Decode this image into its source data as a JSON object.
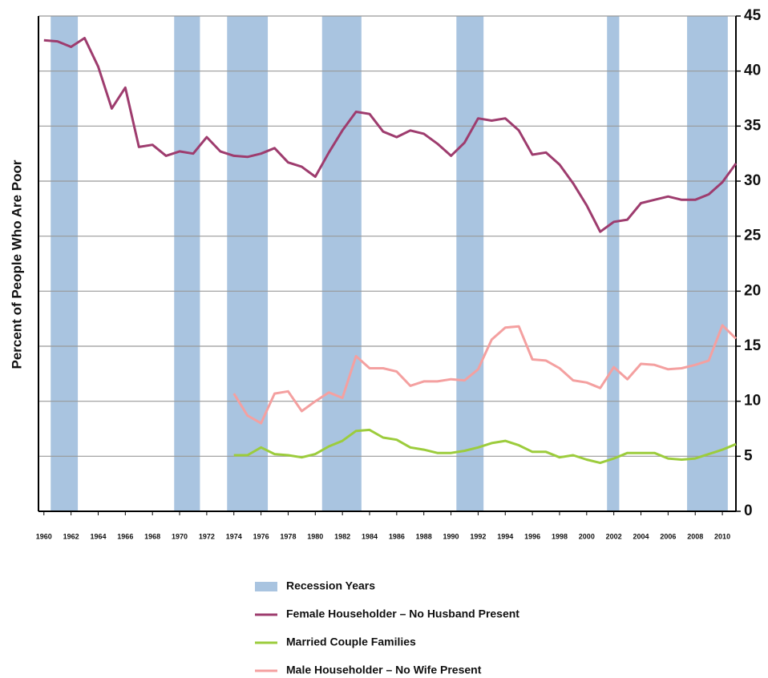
{
  "chart_data": {
    "type": "line",
    "y_label": "Percent of People Who Are Poor",
    "xlim": [
      1959.6,
      2011
    ],
    "ylim": [
      0,
      45
    ],
    "xticks": [
      1960,
      1962,
      1964,
      1966,
      1968,
      1970,
      1972,
      1974,
      1976,
      1978,
      1980,
      1982,
      1984,
      1986,
      1988,
      1990,
      1992,
      1994,
      1996,
      1998,
      2000,
      2002,
      2004,
      2006,
      2008,
      2010
    ],
    "yticks": [
      0,
      5,
      10,
      15,
      20,
      25,
      30,
      35,
      40,
      45
    ],
    "grid": true,
    "recessions": {
      "name": "Recession Years",
      "color": "#a9c4e0",
      "spans": [
        [
          1960.5,
          1962.5
        ],
        [
          1969.6,
          1971.5
        ],
        [
          1973.5,
          1976.5
        ],
        [
          1980.5,
          1983.4
        ],
        [
          1990.4,
          1992.4
        ],
        [
          2001.5,
          2002.4
        ],
        [
          2007.4,
          2010.4
        ]
      ]
    },
    "series": [
      {
        "name": "Female Householder – No Husband Present",
        "color": "#9e3c6e",
        "x": [
          1960,
          1961,
          1962,
          1963,
          1964,
          1965,
          1966,
          1967,
          1968,
          1969,
          1970,
          1971,
          1972,
          1973,
          1974,
          1975,
          1976,
          1977,
          1978,
          1979,
          1980,
          1981,
          1982,
          1983,
          1984,
          1985,
          1986,
          1987,
          1988,
          1989,
          1990,
          1991,
          1992,
          1993,
          1994,
          1995,
          1996,
          1997,
          1998,
          1999,
          2000,
          2001,
          2002,
          2003,
          2004,
          2005,
          2006,
          2007,
          2008,
          2009,
          2010,
          2011
        ],
        "values": [
          42.8,
          42.7,
          42.2,
          43.0,
          40.4,
          36.6,
          38.5,
          33.1,
          33.3,
          32.3,
          32.7,
          32.5,
          34.0,
          32.7,
          32.3,
          32.2,
          32.5,
          33.0,
          31.7,
          31.3,
          30.4,
          32.6,
          34.6,
          36.3,
          36.1,
          34.5,
          34.0,
          34.6,
          34.3,
          33.4,
          32.3,
          33.5,
          35.7,
          35.5,
          35.7,
          34.6,
          32.4,
          32.6,
          31.5,
          29.8,
          27.8,
          25.4,
          26.3,
          26.5,
          28.0,
          28.3,
          28.6,
          28.3,
          28.3,
          28.8,
          29.9,
          31.6
        ]
      },
      {
        "name": "Married Couple Families",
        "color": "#9ccc3c",
        "x": [
          1974,
          1975,
          1976,
          1977,
          1978,
          1979,
          1980,
          1981,
          1982,
          1983,
          1984,
          1985,
          1986,
          1987,
          1988,
          1989,
          1990,
          1991,
          1992,
          1993,
          1994,
          1995,
          1996,
          1997,
          1998,
          1999,
          2000,
          2001,
          2002,
          2003,
          2004,
          2005,
          2006,
          2007,
          2008,
          2009,
          2010,
          2011
        ],
        "values": [
          5.1,
          5.1,
          5.8,
          5.2,
          5.1,
          4.9,
          5.2,
          5.9,
          6.4,
          7.3,
          7.4,
          6.7,
          6.5,
          5.8,
          5.6,
          5.3,
          5.3,
          5.5,
          5.8,
          6.2,
          6.4,
          6.0,
          5.4,
          5.4,
          4.9,
          5.1,
          4.7,
          4.4,
          4.8,
          5.3,
          5.3,
          5.3,
          4.8,
          4.7,
          4.8,
          5.2,
          5.6,
          6.1
        ]
      },
      {
        "name": "Male Householder – No Wife Present",
        "color": "#f4a0a0",
        "x": [
          1974,
          1975,
          1976,
          1977,
          1978,
          1979,
          1980,
          1981,
          1982,
          1983,
          1984,
          1985,
          1986,
          1987,
          1988,
          1989,
          1990,
          1991,
          1992,
          1993,
          1994,
          1995,
          1996,
          1997,
          1998,
          1999,
          2000,
          2001,
          2002,
          2003,
          2004,
          2005,
          2006,
          2007,
          2008,
          2009,
          2010,
          2011
        ],
        "values": [
          10.7,
          8.7,
          8.0,
          10.7,
          10.9,
          9.1,
          10.0,
          10.8,
          10.3,
          14.1,
          13.0,
          13.0,
          12.7,
          11.4,
          11.8,
          11.8,
          12.0,
          11.9,
          12.9,
          15.6,
          16.7,
          16.8,
          13.8,
          13.7,
          13.0,
          11.9,
          11.7,
          11.2,
          13.1,
          12.0,
          13.4,
          13.3,
          12.9,
          13.0,
          13.3,
          13.7,
          16.9,
          15.7
        ]
      }
    ]
  }
}
